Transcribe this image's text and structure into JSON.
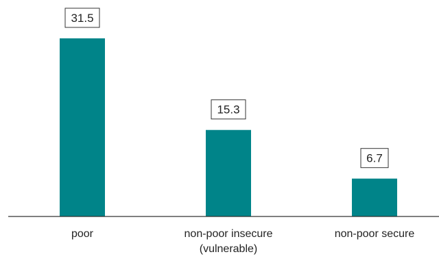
{
  "chart_data": {
    "type": "bar",
    "categories": [
      "poor",
      "non-poor insecure (vulnerable)",
      "non-poor secure"
    ],
    "category_lines": [
      [
        "poor"
      ],
      [
        "non-poor insecure",
        "(vulnerable)"
      ],
      [
        "non-poor secure"
      ]
    ],
    "values": [
      31.5,
      15.3,
      6.7
    ],
    "value_labels": [
      "31.5",
      "15.3",
      "6.7"
    ],
    "title": "",
    "xlabel": "",
    "ylabel": "",
    "ylim": [
      0,
      31.5
    ],
    "grid": false,
    "legend": "none",
    "colors": {
      "bar": "#008489",
      "axis": "#333333",
      "label_box_border": "#333333",
      "text": "#222222"
    }
  }
}
